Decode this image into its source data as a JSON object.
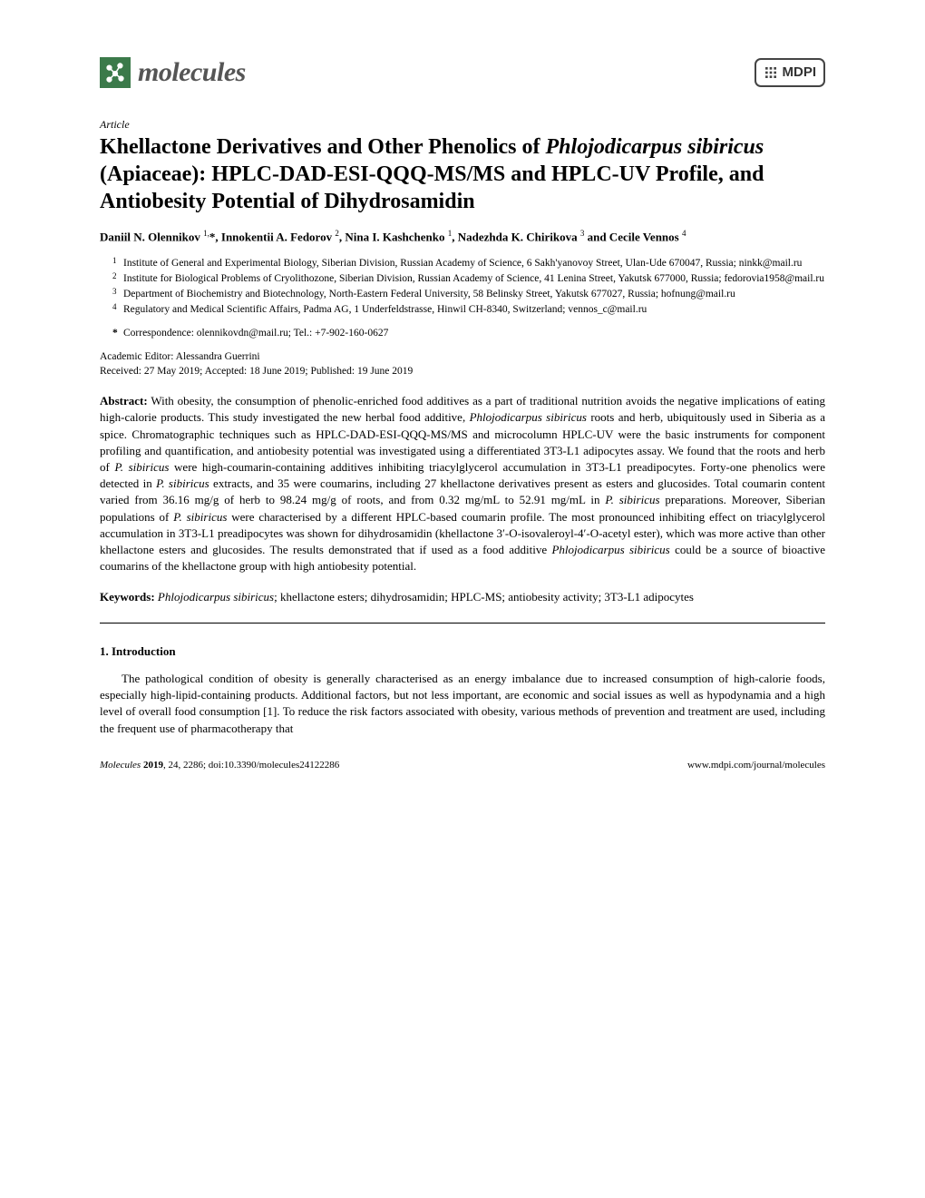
{
  "journal": {
    "logo_text": "molecules",
    "logo_color": "#3b7a4a",
    "publisher_badge": "MDPI"
  },
  "article": {
    "type_label": "Article",
    "title_line1": "Khellactone Derivatives and Other Phenolics of",
    "title_italic": "Phlojodicarpus sibiricus",
    "title_after_italic": " (Apiaceae):",
    "title_line2": "HPLC-DAD-ESI-QQQ-MS/MS and HPLC-UV Profile, and Antiobesity Potential of Dihydrosamidin",
    "authors_html": "Daniil N. Olennikov <sup>1,</sup>*, Innokentii A. Fedorov <sup>2</sup>, Nina I. Kashchenko <sup>1</sup>, Nadezhda K. Chirikova <sup>3</sup> and Cecile Vennos <sup>4</sup>",
    "affiliations": [
      {
        "num": "1",
        "text": "Institute of General and Experimental Biology, Siberian Division, Russian Academy of Science, 6 Sakh'yanovoy Street, Ulan-Ude 670047, Russia; ninkk@mail.ru"
      },
      {
        "num": "2",
        "text": "Institute for Biological Problems of Cryolithozone, Siberian Division, Russian Academy of Science, 41 Lenina Street, Yakutsk 677000, Russia; fedorovia1958@mail.ru"
      },
      {
        "num": "3",
        "text": "Department of Biochemistry and Biotechnology, North-Eastern Federal University, 58 Belinsky Street, Yakutsk 677027, Russia; hofnung@mail.ru"
      },
      {
        "num": "4",
        "text": "Regulatory and Medical Scientific Affairs, Padma AG, 1 Underfeldstrasse, Hinwil CH-8340, Switzerland; vennos_c@mail.ru"
      }
    ],
    "correspondence": "Correspondence: olennikovdn@mail.ru; Tel.: +7-902-160-0627",
    "editor": "Academic Editor: Alessandra Guerrini",
    "dates": "Received: 27 May 2019; Accepted: 18 June 2019; Published: 19 June 2019",
    "abstract_label": "Abstract:",
    "abstract_body": " With obesity, the consumption of phenolic-enriched food additives as a part of traditional nutrition avoids the negative implications of eating high-calorie products. This study investigated the new herbal food additive, ",
    "abstract_ital1": "Phlojodicarpus sibiricus",
    "abstract_body2": " roots and herb, ubiquitously used in Siberia as a spice. Chromatographic techniques such as HPLC-DAD-ESI-QQQ-MS/MS and microcolumn HPLC-UV were the basic instruments for component profiling and quantification, and antiobesity potential was investigated using a differentiated 3T3-L1 adipocytes assay. We found that the roots and herb of ",
    "abstract_ital2": "P. sibiricus",
    "abstract_body3": " were high-coumarin-containing additives inhibiting triacylglycerol accumulation in 3T3-L1 preadipocytes. Forty-one phenolics were detected in ",
    "abstract_ital3": "P. sibiricus",
    "abstract_body4": " extracts, and 35 were coumarins, including 27 khellactone derivatives present as esters and glucosides. Total coumarin content varied from 36.16 mg/g of herb to 98.24 mg/g of roots, and from 0.32 mg/mL to 52.91 mg/mL in ",
    "abstract_ital4": "P. sibiricus",
    "abstract_body5": " preparations. Moreover, Siberian populations of ",
    "abstract_ital5": "P. sibiricus",
    "abstract_body6": " were characterised by a different HPLC-based coumarin profile. The most pronounced inhibiting effect on triacylglycerol accumulation in 3T3-L1 preadipocytes was shown for dihydrosamidin (khellactone 3′-O-isovaleroyl-4′-O-acetyl ester), which was more active than other khellactone esters and glucosides. The results demonstrated that if used as a food additive ",
    "abstract_ital6": "Phlojodicarpus sibiricus",
    "abstract_body7": " could be a source of bioactive coumarins of the khellactone group with high antiobesity potential.",
    "keywords_label": "Keywords:",
    "keywords_ital": "Phlojodicarpus sibiricus",
    "keywords_rest": "; khellactone esters; dihydrosamidin; HPLC-MS; antiobesity activity; 3T3-L1 adipocytes",
    "section1_heading": "1. Introduction",
    "section1_para1": "The pathological condition of obesity is generally characterised as an energy imbalance due to increased consumption of high-calorie foods, especially high-lipid-containing products. Additional factors, but not less important, are economic and social issues as well as hypodynamia and a high level of overall food consumption [1]. To reduce the risk factors associated with obesity, various methods of prevention and treatment are used, including the frequent use of pharmacotherapy that"
  },
  "footer": {
    "left_ital": "Molecules ",
    "left_bold": "2019",
    "left_rest": ", 24, 2286; doi:10.3390/molecules24122286",
    "right": "www.mdpi.com/journal/molecules"
  },
  "colors": {
    "text": "#000000",
    "background": "#ffffff",
    "logo_green": "#3b7a4a",
    "badge_border": "#444444"
  }
}
